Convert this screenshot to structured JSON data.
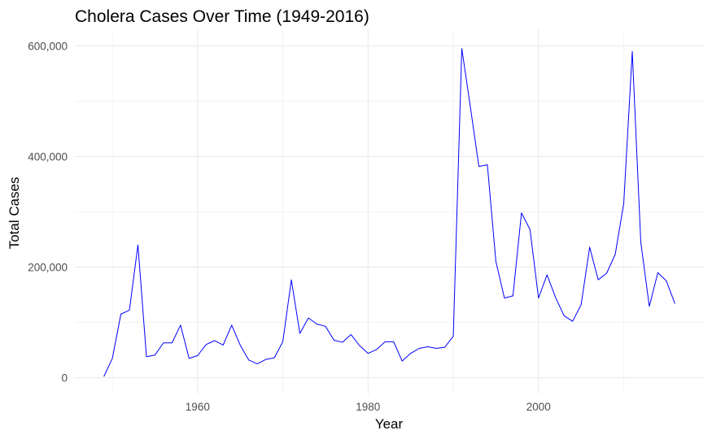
{
  "chart_data": {
    "type": "line",
    "title": "Cholera Cases Over Time (1949-2016)",
    "xlabel": "Year",
    "ylabel": "Total Cases",
    "xlim": [
      1945.6,
      2019.4
    ],
    "ylim": [
      -30000,
      630000
    ],
    "x_ticks": [
      1960,
      1980,
      2000
    ],
    "x_tick_labels": [
      "1960",
      "1980",
      "2000"
    ],
    "x_minor_ticks": [
      1950,
      1970,
      1990,
      2010
    ],
    "y_ticks": [
      0,
      200000,
      400000,
      600000
    ],
    "y_tick_labels": [
      "0",
      "200,000",
      "400,000",
      "600,000"
    ],
    "y_minor_ticks": [
      100000,
      300000,
      500000
    ],
    "grid": true,
    "line_color": "#0000ff",
    "series": [
      {
        "x": [
          1949,
          1950,
          1951,
          1952,
          1953,
          1954,
          1955,
          1956,
          1957,
          1958,
          1959,
          1960,
          1961,
          1962,
          1963,
          1964,
          1965,
          1966,
          1967,
          1968,
          1969,
          1970,
          1971,
          1972,
          1973,
          1974,
          1975,
          1976,
          1977,
          1978,
          1979,
          1980,
          1981,
          1982,
          1983,
          1984,
          1985,
          1986,
          1987,
          1988,
          1989,
          1990,
          1991,
          1992,
          1993,
          1994,
          1995,
          1996,
          1997,
          1998,
          1999,
          2000,
          2001,
          2002,
          2003,
          2004,
          2005,
          2006,
          2007,
          2008,
          2009,
          2010,
          2011,
          2012,
          2013,
          2014,
          2015,
          2016
        ],
        "y": [
          2000,
          35000,
          115000,
          122000,
          240000,
          38000,
          41000,
          63000,
          63000,
          95000,
          35000,
          40000,
          60000,
          67000,
          59000,
          95000,
          59000,
          32000,
          25000,
          33000,
          36000,
          65000,
          177000,
          80000,
          108000,
          97000,
          93000,
          68000,
          64000,
          78000,
          58000,
          44000,
          51000,
          65000,
          65000,
          30000,
          44000,
          53000,
          56000,
          53000,
          55000,
          75000,
          595000,
          490000,
          382000,
          385000,
          210000,
          144000,
          148000,
          298000,
          268000,
          144000,
          186000,
          145000,
          112000,
          102000,
          132000,
          236000,
          177000,
          189000,
          223000,
          315000,
          590000,
          245000,
          129000,
          190000,
          175000,
          134000
        ]
      }
    ]
  }
}
